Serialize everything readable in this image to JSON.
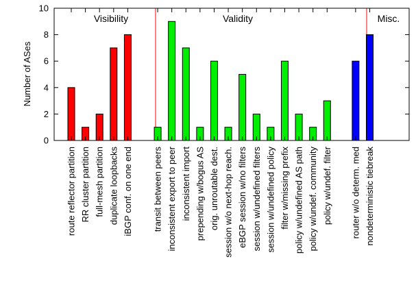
{
  "chart_data": {
    "type": "bar",
    "title": "",
    "xlabel": "",
    "ylabel": "Number of ASes",
    "ylim": [
      0,
      10
    ],
    "yticks": [
      0,
      2,
      4,
      6,
      8,
      10
    ],
    "grid": false,
    "legend": "none",
    "groups": [
      {
        "name": "Visibility",
        "color": "#ff0000",
        "categories": [
          "route reflector partition",
          "RR cluster partition",
          "full-mesh partition",
          "duplicate loopbacks",
          "iBGP conf. on one end"
        ],
        "values": [
          4,
          1,
          2,
          7,
          8
        ]
      },
      {
        "name": "Validity",
        "color": "#00ee00",
        "categories": [
          "transit between peers",
          "inconsistent export to peer",
          "inconsistent import",
          "prepending w/bogus AS",
          "orig. unroutable dest.",
          "session w/o next-hop reach.",
          "eBGP session w/no filters",
          "session w/undefined filters",
          "session w/undefined policy",
          "filter w/missing prefix",
          "policy w/undefined AS path",
          "policy w/undef. community",
          "policy w/undef. filter"
        ],
        "values": [
          1,
          9,
          7,
          1,
          6,
          1,
          5,
          2,
          1,
          6,
          2,
          1,
          3
        ]
      },
      {
        "name": "Misc.",
        "color": "#0000ff",
        "categories": [
          "router w/o determ. med",
          "nondeterministic tiebreak"
        ],
        "values": [
          6,
          8
        ]
      }
    ],
    "separator_color": "#ff0000"
  }
}
